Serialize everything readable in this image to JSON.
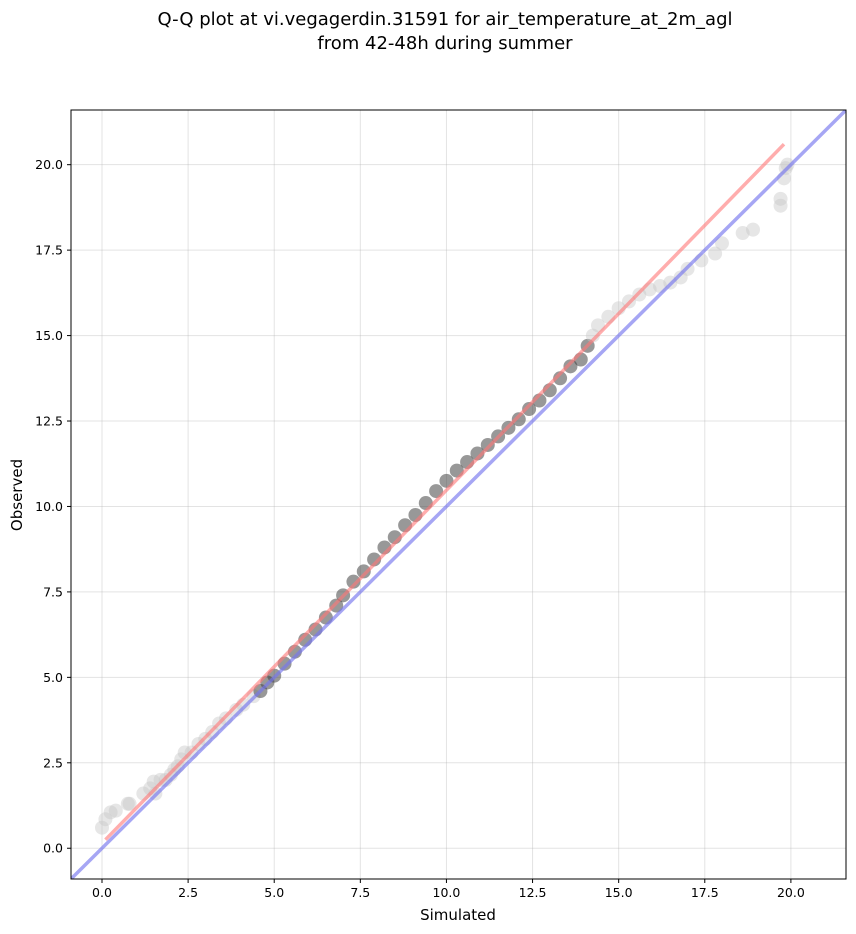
{
  "chart_data": {
    "type": "scatter",
    "title": "Q-Q plot at vi.vegagerdin.31591 for air_temperature_at_2m_agl",
    "subtitle": "from 42-48h during summer",
    "xlabel": "Simulated",
    "ylabel": "Observed",
    "xlim": [
      -0.9,
      21.6
    ],
    "ylim": [
      -0.9,
      21.6
    ],
    "xticks": [
      "0.0",
      "2.5",
      "5.0",
      "7.5",
      "10.0",
      "12.5",
      "15.0",
      "17.5",
      "20.0"
    ],
    "yticks": [
      "0.0",
      "2.5",
      "5.0",
      "7.5",
      "10.0",
      "12.5",
      "15.0",
      "17.5",
      "20.0"
    ],
    "grid": true,
    "colors": {
      "point": "#444444",
      "point_light": "#c8c8c8",
      "fit_line": "#ff7777",
      "identity_line": "#7777ee",
      "dense_core": "#1a1a40"
    },
    "fit_line": {
      "x": [
        0.1,
        19.8
      ],
      "y": [
        0.25,
        20.6
      ]
    },
    "identity_line": {
      "x": [
        -0.9,
        21.6
      ],
      "y": [
        -0.9,
        21.6
      ]
    },
    "series": [
      {
        "points": [
          [
            0.0,
            0.6
          ],
          [
            0.1,
            0.85
          ],
          [
            0.25,
            1.05
          ],
          [
            0.4,
            1.1
          ],
          [
            0.75,
            1.3
          ],
          [
            0.8,
            1.3
          ],
          [
            1.2,
            1.6
          ],
          [
            1.4,
            1.75
          ],
          [
            1.5,
            1.95
          ],
          [
            1.55,
            1.6
          ],
          [
            1.7,
            2.0
          ],
          [
            1.85,
            2.0
          ],
          [
            2.0,
            2.15
          ],
          [
            2.1,
            2.3
          ],
          [
            2.2,
            2.4
          ],
          [
            2.3,
            2.6
          ],
          [
            2.4,
            2.8
          ],
          [
            2.6,
            2.8
          ],
          [
            2.8,
            3.05
          ],
          [
            3.0,
            3.2
          ],
          [
            3.2,
            3.4
          ],
          [
            3.4,
            3.65
          ],
          [
            3.6,
            3.8
          ],
          [
            3.9,
            4.05
          ],
          [
            4.1,
            4.2
          ],
          [
            4.4,
            4.45
          ],
          [
            4.6,
            4.6
          ],
          [
            4.8,
            4.85
          ],
          [
            5.0,
            5.05
          ],
          [
            5.3,
            5.4
          ],
          [
            5.6,
            5.75
          ],
          [
            5.9,
            6.1
          ],
          [
            6.2,
            6.4
          ],
          [
            6.5,
            6.75
          ],
          [
            6.8,
            7.1
          ],
          [
            7.0,
            7.4
          ],
          [
            7.3,
            7.8
          ],
          [
            7.6,
            8.1
          ],
          [
            7.9,
            8.45
          ],
          [
            8.2,
            8.8
          ],
          [
            8.5,
            9.1
          ],
          [
            8.8,
            9.45
          ],
          [
            9.1,
            9.75
          ],
          [
            9.4,
            10.1
          ],
          [
            9.7,
            10.45
          ],
          [
            10.0,
            10.75
          ],
          [
            10.3,
            11.05
          ],
          [
            10.6,
            11.3
          ],
          [
            10.9,
            11.55
          ],
          [
            11.2,
            11.8
          ],
          [
            11.5,
            12.05
          ],
          [
            11.8,
            12.3
          ],
          [
            12.1,
            12.55
          ],
          [
            12.4,
            12.85
          ],
          [
            12.7,
            13.1
          ],
          [
            13.0,
            13.4
          ],
          [
            13.3,
            13.75
          ],
          [
            13.6,
            14.1
          ],
          [
            13.9,
            14.3
          ],
          [
            14.1,
            14.7
          ],
          [
            14.25,
            15.0
          ],
          [
            14.4,
            15.3
          ],
          [
            14.7,
            15.55
          ],
          [
            15.0,
            15.8
          ],
          [
            15.3,
            16.0
          ],
          [
            15.6,
            16.2
          ],
          [
            15.9,
            16.35
          ],
          [
            16.2,
            16.45
          ],
          [
            16.5,
            16.55
          ],
          [
            16.8,
            16.7
          ],
          [
            17.0,
            16.95
          ],
          [
            17.4,
            17.2
          ],
          [
            17.8,
            17.4
          ],
          [
            18.0,
            17.7
          ],
          [
            18.6,
            18.0
          ],
          [
            18.9,
            18.1
          ],
          [
            19.7,
            18.8
          ],
          [
            19.7,
            19.0
          ],
          [
            19.8,
            19.6
          ],
          [
            19.85,
            19.9
          ],
          [
            19.9,
            20.0
          ]
        ]
      }
    ]
  }
}
